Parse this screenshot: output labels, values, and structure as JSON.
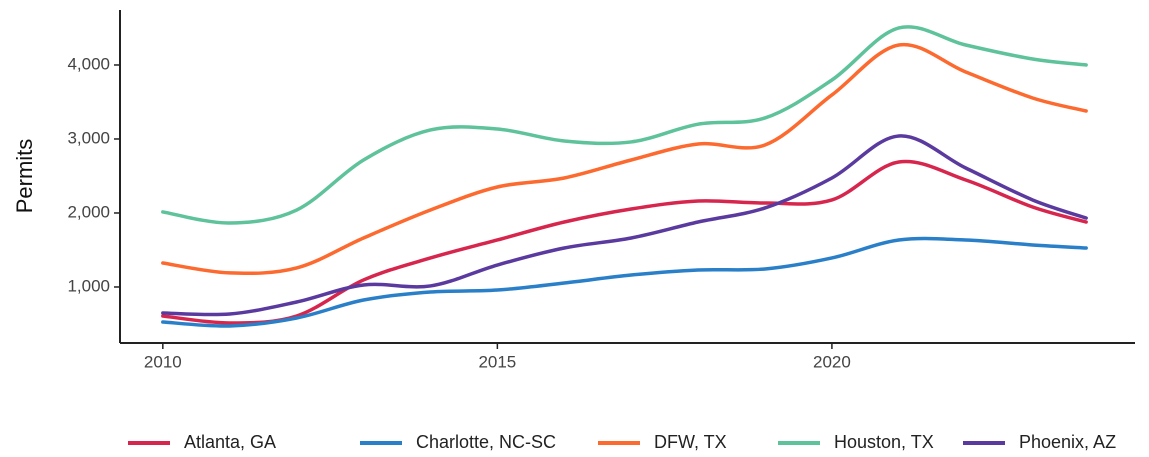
{
  "chart_data": {
    "type": "line",
    "y_label": "Permits",
    "x": [
      2010,
      2011,
      2012,
      2013,
      2014,
      2015,
      2016,
      2017,
      2018,
      2019,
      2020,
      2021,
      2022,
      2023,
      2023.8
    ],
    "series": [
      {
        "name": "Atlanta, GA",
        "color": "#d7264d",
        "values": [
          608,
          514,
          608,
          1095,
          1392,
          1635,
          1878,
          2054,
          2162,
          2135,
          2176,
          2689,
          2446,
          2081,
          1878
        ]
      },
      {
        "name": "Charlotte, NC-SC",
        "color": "#2a7fc9",
        "values": [
          527,
          473,
          581,
          824,
          932,
          959,
          1054,
          1162,
          1230,
          1243,
          1392,
          1635,
          1635,
          1568,
          1527
        ]
      },
      {
        "name": "DFW, TX",
        "color": "#fc6a2f",
        "values": [
          1324,
          1190,
          1257,
          1662,
          2040,
          2351,
          2473,
          2716,
          2932,
          2919,
          3595,
          4270,
          3905,
          3554,
          3378
        ]
      },
      {
        "name": "Houston, TX",
        "color": "#5ec29b",
        "values": [
          2014,
          1865,
          2040,
          2716,
          3122,
          3135,
          2973,
          2960,
          3200,
          3284,
          3797,
          4500,
          4270,
          4081,
          4000
        ]
      },
      {
        "name": "Phoenix, AZ",
        "color": "#5a3a9f",
        "values": [
          649,
          635,
          797,
          1027,
          1014,
          1297,
          1527,
          1662,
          1878,
          2068,
          2473,
          3041,
          2608,
          2176,
          1932
        ]
      }
    ],
    "xlim": [
      2009.36,
      2024.53
    ],
    "xticks": [
      2010,
      2015,
      2020
    ],
    "ylim": [
      243,
      4743
    ],
    "yticks": [
      {
        "value": 1000,
        "label": "1,000"
      },
      {
        "value": 2000,
        "label": "2,000"
      },
      {
        "value": 3000,
        "label": "3,000"
      },
      {
        "value": 4000,
        "label": "4,000"
      }
    ],
    "legend": "bottom"
  }
}
